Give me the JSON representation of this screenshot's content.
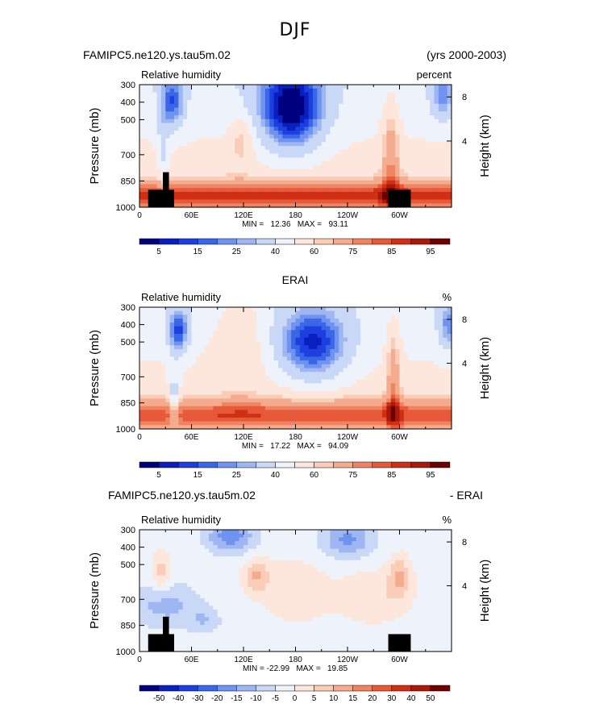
{
  "figure": {
    "season": "DJF",
    "top_left": "FAMIPC5.ne120.ys.tau5m.02",
    "top_right": "(yrs 2000-2003)",
    "colors": {
      "palette": [
        "#00007f",
        "#0a1fbf",
        "#1e3fe0",
        "#3a66e8",
        "#6f93ee",
        "#9eb6f2",
        "#c9d8f6",
        "#eef3fb",
        "#fde7dc",
        "#f9cdb8",
        "#f5ab8f",
        "#ef8463",
        "#e65a3a",
        "#cf3015",
        "#a81a0a",
        "#6e0000"
      ]
    }
  },
  "chart_data": [
    {
      "type": "heatmap",
      "title": "",
      "panel_label": "",
      "left_subtitle": "Relative humidity",
      "right_subtitle": "percent",
      "ylabel": "Pressure (mb)",
      "y2label": "Height (km)",
      "yticks": [
        "300",
        "400",
        "500",
        "700",
        "850",
        "1000"
      ],
      "y2ticks": [
        "8",
        "4"
      ],
      "xticks": [
        "0",
        "60E",
        "120E",
        "180",
        "120W",
        "60W"
      ],
      "stats": "MIN =   12.36   MAX =   93.11",
      "min": 12.36,
      "max": 93.11,
      "colorbar_labels": [
        "5",
        "15",
        "25",
        "40",
        "60",
        "75",
        "85",
        "95"
      ],
      "colorbar_levels": [
        5,
        10,
        15,
        20,
        25,
        30,
        40,
        50,
        60,
        65,
        75,
        80,
        85,
        90,
        95
      ],
      "variant": "model"
    },
    {
      "type": "heatmap",
      "title": "ERAI",
      "panel_label": "",
      "left_subtitle": "Relative humidity",
      "right_subtitle": "%",
      "ylabel": "Pressure (mb)",
      "y2label": "Height (km)",
      "yticks": [
        "300",
        "400",
        "500",
        "700",
        "850",
        "1000"
      ],
      "y2ticks": [
        "8",
        "4"
      ],
      "xticks": [
        "0",
        "60E",
        "120E",
        "180",
        "120W",
        "60W"
      ],
      "stats": "MIN =   17.22   MAX =   94.09",
      "min": 17.22,
      "max": 94.09,
      "colorbar_labels": [
        "5",
        "15",
        "25",
        "40",
        "60",
        "75",
        "85",
        "95"
      ],
      "colorbar_levels": [
        5,
        10,
        15,
        20,
        25,
        30,
        40,
        50,
        60,
        65,
        75,
        80,
        85,
        90,
        95
      ],
      "variant": "obs"
    },
    {
      "type": "heatmap",
      "title": "",
      "panel_label": "FAMIPC5.ne120.ys.tau5m.02",
      "panel_label_right": "- ERAI",
      "left_subtitle": "Relative humidity",
      "right_subtitle": "%",
      "ylabel": "Pressure (mb)",
      "y2label": "Height (km)",
      "yticks": [
        "300",
        "400",
        "500",
        "700",
        "850",
        "1000"
      ],
      "y2ticks": [
        "8",
        "4"
      ],
      "xticks": [
        "0",
        "60E",
        "120E",
        "180",
        "120W",
        "60W"
      ],
      "stats": "MIN = -22.99   MAX =   19.85",
      "min": -22.99,
      "max": 19.85,
      "colorbar_labels": [
        "-50",
        "-40",
        "-30",
        "-20",
        "-15",
        "-10",
        "-5",
        "0",
        "5",
        "10",
        "15",
        "20",
        "30",
        "40",
        "50"
      ],
      "colorbar_levels": [
        -50,
        -40,
        -30,
        -20,
        -15,
        -10,
        -5,
        0,
        5,
        10,
        15,
        20,
        30,
        40,
        50
      ],
      "variant": "diff"
    }
  ]
}
